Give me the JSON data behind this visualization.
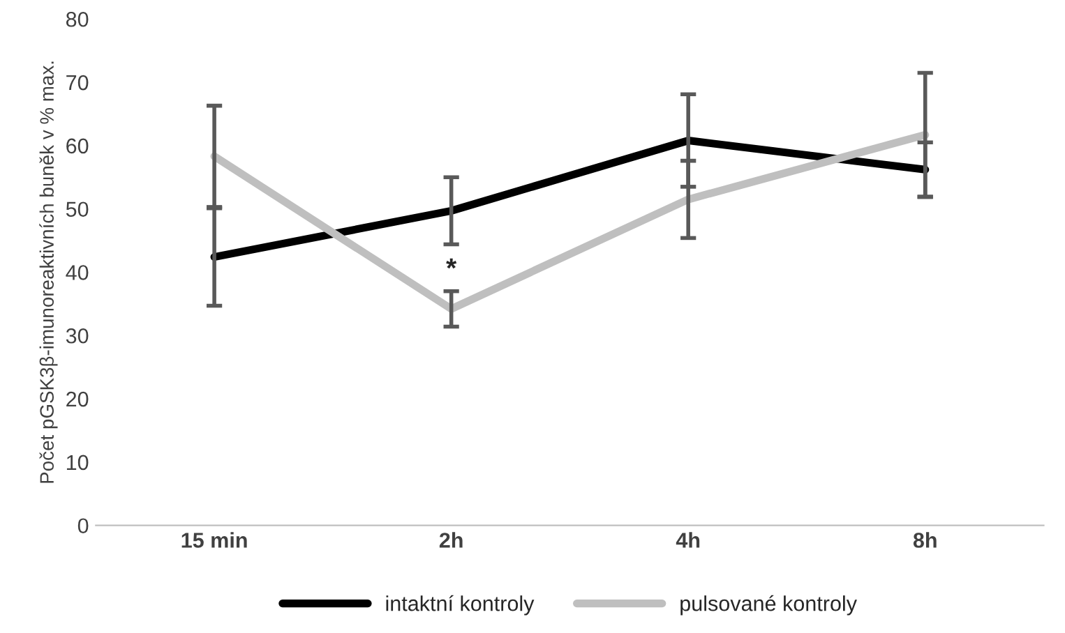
{
  "chart_data": {
    "type": "line",
    "ylabel": "Počet pGSK3β-imunoreaktivních buněk v % max.",
    "categories": [
      "15 min",
      "2h",
      "4h",
      "8h"
    ],
    "series": [
      {
        "name": "intaktní kontroly",
        "color": "#000000",
        "values": [
          42.4,
          49.7,
          60.8,
          56.2
        ],
        "errors": [
          7.7,
          5.3,
          7.3,
          4.3
        ]
      },
      {
        "name": "pulsované kontroly",
        "color": "#bfbfbf",
        "values": [
          58.3,
          34.2,
          51.5,
          61.7
        ],
        "errors": [
          8,
          2.8,
          6.1,
          9.8
        ]
      }
    ],
    "ylim": [
      0,
      80
    ],
    "yticks": [
      0,
      10,
      20,
      30,
      40,
      50,
      60,
      70,
      80
    ],
    "grid": false,
    "legend": "bottom",
    "marker": "none",
    "line_style": "solid",
    "annotations": [
      {
        "text": "*",
        "x": "2h",
        "y": 34.2
      }
    ]
  }
}
